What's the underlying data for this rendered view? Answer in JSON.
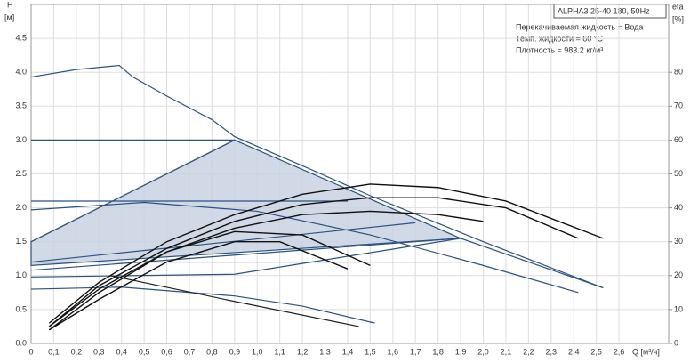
{
  "chart_data": {
    "type": "line",
    "y_label": "H",
    "y_unit": "[м]",
    "y2_label": "eta",
    "y2_unit": "[%]",
    "x_label": "Q [м³/ч]",
    "info_title": "ALPHA3 25-40 180, 50Hz",
    "info_lines": [
      "Перекачиваемая жидкость = Вода",
      "Темп. жидкости = 60 °C",
      "Плотность = 983.2 кг/м³"
    ],
    "xlim": [
      0,
      2.82
    ],
    "ylim": [
      0,
      5
    ],
    "y2lim": [
      0,
      100
    ],
    "grid": true,
    "xticks": [
      {
        "value": 0,
        "label": "0"
      },
      {
        "value": 0.1,
        "label": "0,1"
      },
      {
        "value": 0.2,
        "label": "0,2"
      },
      {
        "value": 0.3,
        "label": "0,3"
      },
      {
        "value": 0.4,
        "label": "0,4"
      },
      {
        "value": 0.5,
        "label": "0,5"
      },
      {
        "value": 0.6,
        "label": "0,6"
      },
      {
        "value": 0.7,
        "label": "0,7"
      },
      {
        "value": 0.8,
        "label": "0,8"
      },
      {
        "value": 0.9,
        "label": "0,9"
      },
      {
        "value": 1,
        "label": "1,0"
      },
      {
        "value": 1.1,
        "label": "1,1"
      },
      {
        "value": 1.2,
        "label": "1,2"
      },
      {
        "value": 1.3,
        "label": "1,3"
      },
      {
        "value": 1.4,
        "label": "1,4"
      },
      {
        "value": 1.5,
        "label": "1,5"
      },
      {
        "value": 1.6,
        "label": "1,6"
      },
      {
        "value": 1.7,
        "label": "1,7"
      },
      {
        "value": 1.8,
        "label": "1,8"
      },
      {
        "value": 1.9,
        "label": "1,9"
      },
      {
        "value": 2,
        "label": "2,0"
      },
      {
        "value": 2.1,
        "label": "2,1"
      },
      {
        "value": 2.2,
        "label": "2,2"
      },
      {
        "value": 2.3,
        "label": "2,3"
      },
      {
        "value": 2.4,
        "label": "2,4"
      },
      {
        "value": 2.5,
        "label": "2,5"
      },
      {
        "value": 2.6,
        "label": "2,6"
      }
    ],
    "yticks": [
      {
        "value": 0,
        "label": "0.0"
      },
      0.5,
      {
        "value": 1,
        "label": "1.0"
      },
      1.5,
      {
        "value": 2,
        "label": "2.0"
      },
      2.5,
      {
        "value": 3,
        "label": "3.0"
      },
      3.5,
      {
        "value": 4,
        "label": "4.0"
      },
      4.5
    ],
    "y2ticks": [
      0,
      10,
      20,
      30,
      40,
      50,
      60,
      70,
      80
    ],
    "series": [
      {
        "color": "#2b5283",
        "fill": "#c8d2e0",
        "x": [
          0,
          0,
          0.9,
          1.9,
          0
        ],
        "values": [
          1.15,
          1.5,
          3.0,
          1.55,
          1.15
        ]
      },
      {
        "color": "#2b5283",
        "x": [
          0,
          0.2,
          0.39,
          0.45,
          0.6,
          0.8,
          0.9,
          1.2,
          1.5,
          2.0,
          2.53
        ],
        "values": [
          3.93,
          4.04,
          4.1,
          3.93,
          3.65,
          3.3,
          3.05,
          2.62,
          2.18,
          1.5,
          0.82
        ]
      },
      {
        "color": "#2b5283",
        "x": [
          0,
          0.9
        ],
        "values": [
          3.0,
          3.0
        ]
      },
      {
        "color": "#2b5283",
        "x": [
          0,
          0.9
        ],
        "values": [
          1.5,
          3.0
        ]
      },
      {
        "color": "#2b5283",
        "x": [
          0,
          1.4
        ],
        "values": [
          2.1,
          2.1
        ]
      },
      {
        "color": "#2b5283",
        "x": [
          0,
          0.5,
          1.0,
          1.5,
          2.0,
          2.42
        ],
        "values": [
          1.97,
          2.08,
          1.95,
          1.6,
          1.15,
          0.75
        ]
      },
      {
        "color": "#2b5283",
        "x": [
          0,
          1.9
        ],
        "values": [
          1.2,
          1.2
        ]
      },
      {
        "color": "#2b5283",
        "x": [
          0,
          1.9
        ],
        "values": [
          1.08,
          1.55
        ]
      },
      {
        "color": "#2b5283",
        "x": [
          0,
          1.7
        ],
        "values": [
          1.2,
          1.78
        ]
      },
      {
        "color": "#2b5283",
        "x": [
          0,
          0.9,
          1.9,
          2.53
        ],
        "values": [
          0.98,
          1.02,
          1.55,
          0.82
        ]
      },
      {
        "color": "#2b5283",
        "x": [
          0,
          0.4,
          0.9,
          1.2,
          1.52
        ],
        "values": [
          0.8,
          0.83,
          0.7,
          0.55,
          0.3
        ]
      },
      {
        "color": "#222222",
        "x": [
          0.35,
          0.9,
          1.45
        ],
        "values": [
          1.0,
          0.62,
          0.25
        ]
      },
      {
        "color": "#111111",
        "axis": "y2",
        "x": [
          0.08,
          0.3,
          0.6,
          0.9,
          1.2,
          1.5,
          1.8,
          2.1,
          2.53
        ],
        "values": [
          6,
          18,
          30,
          38,
          44,
          47,
          46,
          42,
          31
        ]
      },
      {
        "color": "#111111",
        "axis": "y2",
        "x": [
          0.08,
          0.3,
          0.6,
          0.9,
          1.2,
          1.5,
          1.8,
          2.1,
          2.42
        ],
        "values": [
          5,
          17,
          28,
          36,
          41,
          43,
          43,
          40,
          31
        ]
      },
      {
        "color": "#111111",
        "axis": "y2",
        "x": [
          0.08,
          0.3,
          0.6,
          0.9,
          1.2,
          1.5,
          1.8,
          2.0
        ],
        "values": [
          5,
          16,
          27,
          34,
          38,
          39,
          38,
          36
        ]
      },
      {
        "color": "#111111",
        "axis": "y2",
        "x": [
          0.08,
          0.3,
          0.6,
          0.9,
          1.2,
          1.5
        ],
        "values": [
          4,
          15,
          27,
          33,
          32,
          23
        ]
      },
      {
        "color": "#111111",
        "axis": "y2",
        "x": [
          0.08,
          0.3,
          0.6,
          0.9,
          1.1,
          1.4
        ],
        "values": [
          4,
          13,
          24,
          30,
          30,
          22
        ]
      }
    ]
  }
}
